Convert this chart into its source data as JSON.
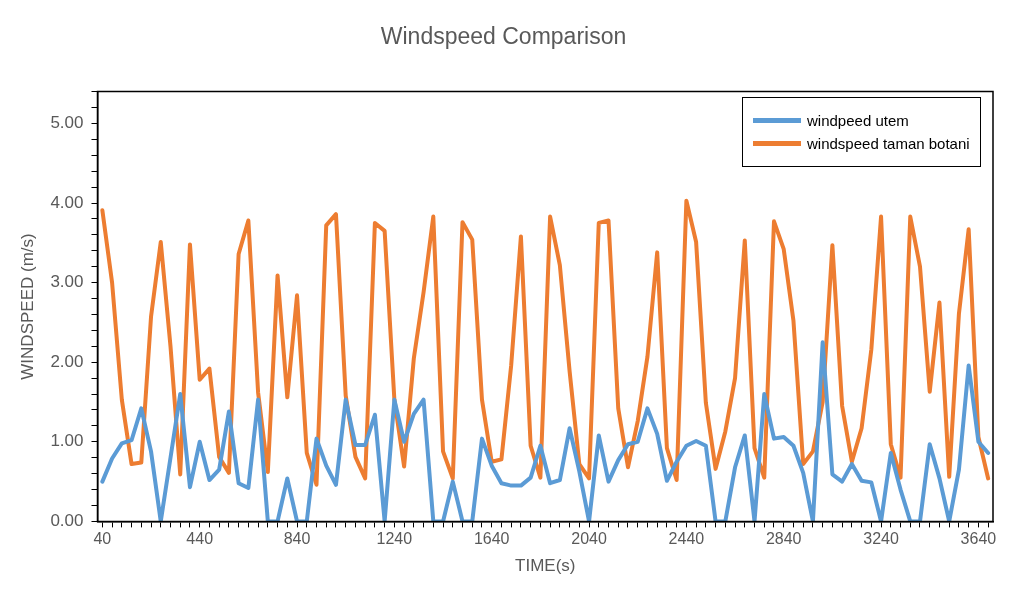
{
  "chart_data": {
    "type": "line",
    "title": "Windspeed Comparison",
    "xlabel": "TIME(s)",
    "ylabel": "WINDSPEED (m/s)",
    "categories": [
      "40",
      null,
      null,
      null,
      null,
      null,
      null,
      null,
      null,
      null,
      "440",
      null,
      null,
      null,
      null,
      null,
      null,
      null,
      null,
      null,
      "840",
      null,
      null,
      null,
      null,
      null,
      null,
      null,
      null,
      null,
      "1240",
      null,
      null,
      null,
      null,
      null,
      null,
      null,
      null,
      null,
      "1640",
      null,
      null,
      null,
      null,
      null,
      null,
      null,
      null,
      null,
      "2040",
      null,
      null,
      null,
      null,
      null,
      null,
      null,
      null,
      null,
      "2440",
      null,
      null,
      null,
      null,
      null,
      null,
      null,
      null,
      null,
      "2840",
      null,
      null,
      null,
      null,
      null,
      null,
      null,
      null,
      null,
      "3240",
      null,
      null,
      null,
      null,
      null,
      null,
      null,
      null,
      null,
      "3640",
      null
    ],
    "series": [
      {
        "name": "windpeed utem",
        "color": "#5b9bd5",
        "values": [
          0.5,
          0.79,
          0.98,
          1.02,
          1.42,
          0.88,
          0,
          0.8,
          1.6,
          0.43,
          1.0,
          0.52,
          0.65,
          1.38,
          0.48,
          0.42,
          1.53,
          0,
          0,
          0.54,
          0,
          0,
          1.04,
          0.7,
          0.46,
          1.53,
          0.96,
          0.96,
          1.34,
          0,
          1.53,
          1.0,
          1.35,
          1.53,
          0,
          0,
          0.5,
          0,
          0,
          1.04,
          0.7,
          0.48,
          0.45,
          0.45,
          0.55,
          0.95,
          0.48,
          0.52,
          1.17,
          0.63,
          0,
          1.08,
          0.5,
          0.77,
          0.97,
          1.0,
          1.42,
          1.1,
          0.51,
          0.75,
          0.95,
          1.01,
          0.95,
          0,
          0,
          0.68,
          1.08,
          0,
          1.6,
          1.04,
          1.06,
          0.95,
          0.61,
          0,
          2.25,
          0.59,
          0.5,
          0.72,
          0.51,
          0.49,
          0,
          0.86,
          0.4,
          0,
          0,
          0.97,
          0.54,
          0,
          0.65,
          1.96,
          1.0,
          0.86
        ]
      },
      {
        "name": "windspeed taman botani",
        "color": "#ed7d31",
        "values": [
          3.91,
          3.0,
          1.53,
          0.72,
          0.74,
          2.57,
          3.51,
          2.2,
          0.59,
          3.48,
          1.78,
          1.92,
          0.81,
          0.61,
          3.36,
          3.78,
          1.62,
          0.62,
          3.09,
          1.56,
          2.84,
          0.86,
          0.46,
          3.72,
          3.86,
          1.58,
          0.81,
          0.54,
          3.75,
          3.65,
          1.53,
          0.69,
          2.05,
          2.88,
          3.83,
          0.88,
          0.54,
          3.76,
          3.54,
          1.53,
          0.75,
          0.78,
          1.96,
          3.58,
          0.95,
          0.55,
          3.83,
          3.22,
          1.89,
          0.72,
          0.54,
          3.75,
          3.78,
          1.42,
          0.68,
          1.26,
          2.07,
          3.38,
          0.92,
          0.52,
          4.03,
          3.51,
          1.49,
          0.66,
          1.13,
          1.8,
          3.53,
          0.92,
          0.55,
          3.77,
          3.42,
          2.52,
          0.72,
          0.88,
          1.5,
          3.47,
          1.45,
          0.75,
          1.17,
          2.16,
          3.83,
          0.97,
          0.55,
          3.83,
          3.2,
          1.63,
          2.75,
          0.56,
          2.61,
          3.67,
          1.06,
          0.54
        ]
      }
    ],
    "ylim": [
      0,
      5.4
    ],
    "yticks": [
      {
        "value": 0,
        "label": "0.00"
      },
      {
        "value": 0.2,
        "label": null
      },
      {
        "value": 0.4,
        "label": null
      },
      {
        "value": 0.6,
        "label": null
      },
      {
        "value": 0.8,
        "label": null
      },
      {
        "value": 1,
        "label": "1.00"
      },
      {
        "value": 1.2,
        "label": null
      },
      {
        "value": 1.4,
        "label": null
      },
      {
        "value": 1.6,
        "label": null
      },
      {
        "value": 1.8,
        "label": null
      },
      {
        "value": 2,
        "label": "2.00"
      },
      {
        "value": 2.2,
        "label": null
      },
      {
        "value": 2.4,
        "label": null
      },
      {
        "value": 2.6,
        "label": null
      },
      {
        "value": 2.8,
        "label": null
      },
      {
        "value": 3,
        "label": "3.00"
      },
      {
        "value": 3.2,
        "label": null
      },
      {
        "value": 3.4,
        "label": null
      },
      {
        "value": 3.6,
        "label": null
      },
      {
        "value": 3.8,
        "label": null
      },
      {
        "value": 4,
        "label": "4.00"
      },
      {
        "value": 4.2,
        "label": null
      },
      {
        "value": 4.4,
        "label": null
      },
      {
        "value": 4.6,
        "label": null
      },
      {
        "value": 4.8,
        "label": null
      },
      {
        "value": 5,
        "label": "5.00"
      },
      {
        "value": 5.2,
        "label": null
      },
      {
        "value": 5.4,
        "label": null
      }
    ],
    "grid": false,
    "legend": "top right",
    "marker": "none",
    "line_style": "solid"
  }
}
